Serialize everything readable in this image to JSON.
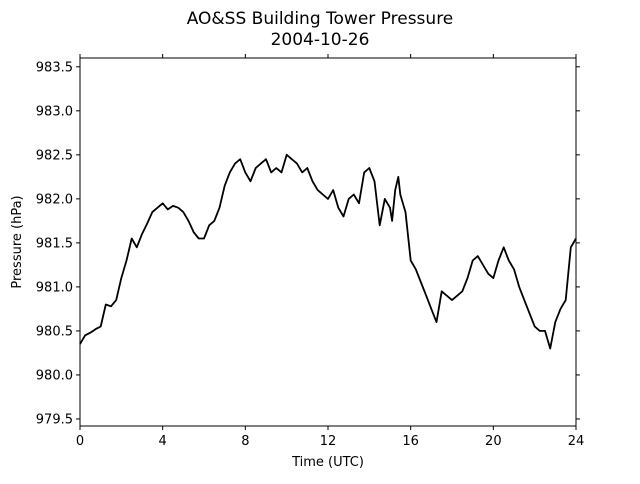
{
  "chart_data": {
    "type": "line",
    "title": "AO&SS Building Tower Pressure",
    "subtitle": "2004-10-26",
    "xlabel": "Time (UTC)",
    "ylabel": "Pressure (hPa)",
    "xlim": [
      0,
      24
    ],
    "ylim": [
      979.42,
      983.6
    ],
    "xticks": [
      0,
      4,
      8,
      12,
      16,
      20,
      24
    ],
    "xtick_labels": [
      "0",
      "4",
      "8",
      "12",
      "16",
      "20",
      "24"
    ],
    "yticks": [
      979.5,
      980.0,
      980.5,
      981.0,
      981.5,
      982.0,
      982.5,
      983.0,
      983.5
    ],
    "ytick_labels": [
      "979.5",
      "980.0",
      "980.5",
      "981.0",
      "981.5",
      "982.0",
      "982.5",
      "983.0",
      "983.5"
    ],
    "grid": false,
    "line_color": "#000000",
    "series": [
      {
        "x": [
          0,
          0.25,
          0.5,
          0.75,
          1.0,
          1.25,
          1.5,
          1.75,
          2.0,
          2.25,
          2.5,
          2.75,
          3.0,
          3.25,
          3.5,
          3.75,
          4.0,
          4.25,
          4.5,
          4.75,
          5.0,
          5.25,
          5.5,
          5.75,
          6.0,
          6.25,
          6.5,
          6.75,
          7.0,
          7.25,
          7.5,
          7.75,
          8.0,
          8.25,
          8.5,
          8.75,
          9.0,
          9.25,
          9.5,
          9.75,
          10.0,
          10.25,
          10.5,
          10.75,
          11.0,
          11.25,
          11.5,
          11.75,
          12.0,
          12.25,
          12.5,
          12.75,
          13.0,
          13.25,
          13.5,
          13.75,
          14.0,
          14.25,
          14.5,
          14.75,
          15.0,
          15.1,
          15.25,
          15.4,
          15.5,
          15.75,
          16.0,
          16.25,
          16.5,
          16.75,
          17.0,
          17.25,
          17.5,
          17.75,
          18.0,
          18.25,
          18.5,
          18.75,
          19.0,
          19.25,
          19.5,
          19.75,
          20.0,
          20.25,
          20.5,
          20.75,
          21.0,
          21.25,
          21.5,
          21.75,
          22.0,
          22.25,
          22.5,
          22.75,
          23.0,
          23.25,
          23.5,
          23.75,
          24.0
        ],
        "y": [
          980.35,
          980.45,
          980.48,
          980.52,
          980.55,
          980.8,
          980.78,
          980.85,
          981.1,
          981.3,
          981.55,
          981.45,
          981.6,
          981.72,
          981.85,
          981.9,
          981.95,
          981.88,
          981.92,
          981.9,
          981.85,
          981.75,
          981.62,
          981.55,
          981.55,
          981.7,
          981.75,
          981.9,
          982.15,
          982.3,
          982.4,
          982.45,
          982.3,
          982.2,
          982.35,
          982.4,
          982.45,
          982.3,
          982.35,
          982.3,
          982.5,
          982.45,
          982.4,
          982.3,
          982.35,
          982.2,
          982.1,
          982.05,
          982.0,
          982.1,
          981.9,
          981.8,
          982.0,
          982.05,
          981.95,
          982.3,
          982.35,
          982.2,
          981.7,
          982.0,
          981.9,
          981.75,
          982.1,
          982.25,
          982.05,
          981.85,
          981.3,
          981.2,
          981.05,
          980.9,
          980.75,
          980.6,
          980.95,
          980.9,
          980.85,
          980.9,
          980.95,
          981.1,
          981.3,
          981.35,
          981.25,
          981.15,
          981.1,
          981.3,
          981.45,
          981.3,
          981.2,
          981.0,
          980.85,
          980.7,
          980.55,
          980.5,
          980.5,
          980.3,
          980.6,
          980.75,
          980.85,
          981.45,
          981.55
        ]
      }
    ]
  }
}
